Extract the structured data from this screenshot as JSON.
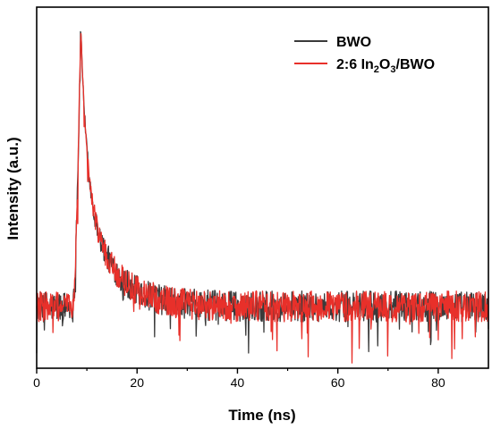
{
  "chart_data": {
    "type": "line",
    "title": "",
    "xlabel": "Time (ns)",
    "ylabel": "Intensity (a.u.)",
    "xlim": [
      0,
      90
    ],
    "x_ticks": [
      "0",
      "20",
      "40",
      "60",
      "80"
    ],
    "y_ticks_labeled": false,
    "grid": false,
    "legend_position": "top-right",
    "series": [
      {
        "name": "BWO",
        "legend_label": {
          "main": "BWO"
        },
        "color": "#3a3a3a",
        "peak_time": 8.8,
        "peak_intensity": 1.0,
        "baseline_intensity": 0.1,
        "noise_amplitude": 0.05
      },
      {
        "name": "2:6 In2O3/BWO",
        "legend_label": {
          "pre": "2:6 In",
          "sub1": "2",
          "mid": "O",
          "sub2": "3",
          "post": "/BWO"
        },
        "color": "#e8302a",
        "peak_time": 8.8,
        "peak_intensity": 0.99,
        "baseline_intensity": 0.1,
        "noise_amplitude": 0.05
      }
    ]
  }
}
